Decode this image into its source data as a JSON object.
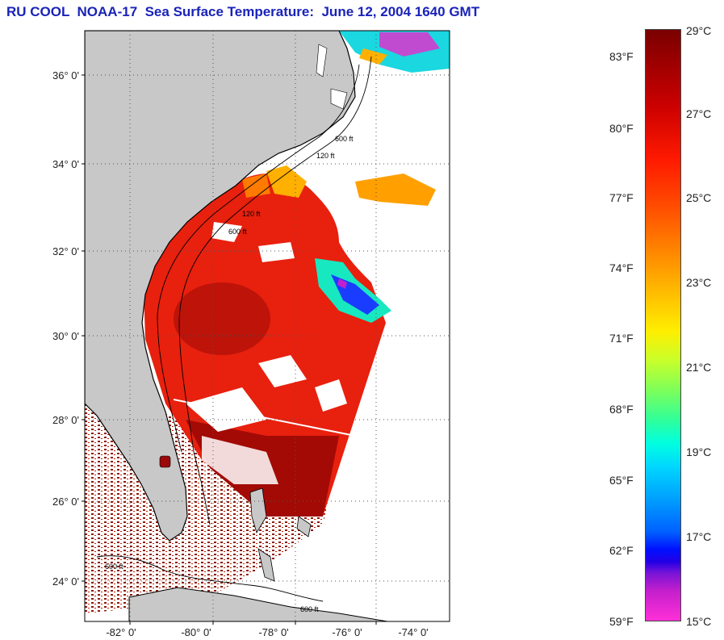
{
  "title": "RU COOL  NOAA-17  Sea Surface Temperature:  June 12, 2004 1640 GMT",
  "map": {
    "lat_labels": [
      "36° 0'",
      "34° 0'",
      "32° 0'",
      "30° 0'",
      "28° 0'",
      "26° 0'",
      "24° 0'"
    ],
    "lon_labels": [
      "-82° 0'",
      "-80° 0'",
      "-78° 0'",
      "-76° 0'",
      "-74° 0'"
    ],
    "contours": [
      "120 ft",
      "600 ft"
    ],
    "colors": {
      "land": "#c8c8c8",
      "cloud": "#ffffff",
      "sst_warm": "#e8200e",
      "sst_hot": "#a80000",
      "sst_mid": "#ff9a00",
      "sst_cool": "#18e8c0",
      "sst_cold": "#1a3cff"
    }
  },
  "colorbar": {
    "fahrenheit_labels": [
      "83°F",
      "80°F",
      "77°F",
      "74°F",
      "71°F",
      "68°F",
      "65°F",
      "62°F",
      "59°F"
    ],
    "celsius_labels": [
      "29°C",
      "27°C",
      "25°C",
      "23°C",
      "21°C",
      "19°C",
      "17°C",
      "15°C"
    ]
  }
}
